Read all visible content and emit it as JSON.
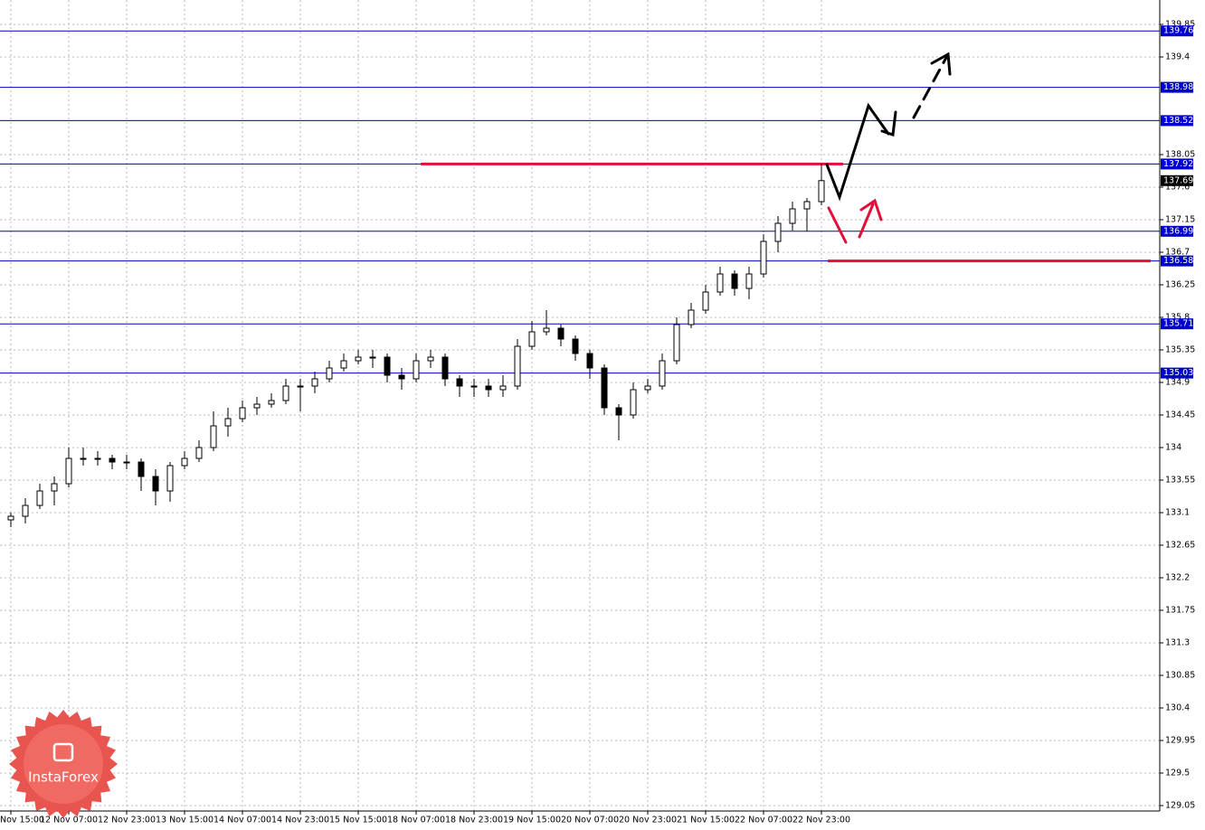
{
  "chart_data": {
    "type": "candlestick",
    "categories": [
      "Nov 15:00",
      null,
      null,
      null,
      "12 Nov 07:00",
      null,
      null,
      null,
      "12 Nov 23:00",
      null,
      null,
      null,
      "13 Nov 15:00",
      null,
      null,
      null,
      "14 Nov 07:00",
      null,
      null,
      null,
      "14 Nov 23:00",
      null,
      null,
      null,
      "15 Nov 15:00",
      null,
      null,
      null,
      "18 Nov 07:00",
      null,
      null,
      null,
      "18 Nov 23:00",
      null,
      null,
      null,
      "19 Nov 15:00",
      null,
      null,
      null,
      "20 Nov 07:00",
      null,
      null,
      null,
      "20 Nov 23:00",
      null,
      null,
      null,
      "21 Nov 15:00",
      null,
      null,
      null,
      "22 Nov 07:00",
      null,
      null,
      null,
      "22 Nov 23:00"
    ],
    "open": [
      133.0,
      133.05,
      133.2,
      133.4,
      133.5,
      133.85,
      133.85,
      133.85,
      133.8,
      133.8,
      133.6,
      133.4,
      133.75,
      133.85,
      134.0,
      134.3,
      134.4,
      134.55,
      134.6,
      134.65,
      134.85,
      134.85,
      134.95,
      135.1,
      135.2,
      135.25,
      135.25,
      135.0,
      134.95,
      135.2,
      135.25,
      134.95,
      134.85,
      134.85,
      134.8,
      134.85,
      135.4,
      135.6,
      135.65,
      135.5,
      135.3,
      135.1,
      134.55,
      134.45,
      134.8,
      134.85,
      135.2,
      135.7,
      135.9,
      136.15,
      136.4,
      136.2,
      136.4,
      136.85,
      137.1,
      137.3,
      137.4
    ],
    "high": [
      133.1,
      133.3,
      133.5,
      133.6,
      134.0,
      134.0,
      133.95,
      133.9,
      133.9,
      133.85,
      133.7,
      133.8,
      133.95,
      134.1,
      134.5,
      134.55,
      134.65,
      134.7,
      134.75,
      134.95,
      134.95,
      135.05,
      135.2,
      135.3,
      135.35,
      135.35,
      135.3,
      135.1,
      135.3,
      135.35,
      135.3,
      135.0,
      134.95,
      134.95,
      135.0,
      135.5,
      135.75,
      135.9,
      135.7,
      135.55,
      135.35,
      135.15,
      134.6,
      134.9,
      134.95,
      135.3,
      135.8,
      136.0,
      136.25,
      136.5,
      136.45,
      136.5,
      136.95,
      137.2,
      137.4,
      137.45,
      137.92
    ],
    "low": [
      132.9,
      132.95,
      133.15,
      133.2,
      133.45,
      133.75,
      133.75,
      133.7,
      133.7,
      133.4,
      133.2,
      133.25,
      133.7,
      133.8,
      133.95,
      134.15,
      134.35,
      134.45,
      134.55,
      134.6,
      134.5,
      134.75,
      134.9,
      135.05,
      135.15,
      135.1,
      134.9,
      134.8,
      134.9,
      135.1,
      134.85,
      134.7,
      134.7,
      134.7,
      134.7,
      134.8,
      135.35,
      135.55,
      135.4,
      135.2,
      134.95,
      134.45,
      134.1,
      134.4,
      134.75,
      134.8,
      135.15,
      135.65,
      135.85,
      136.1,
      136.1,
      136.05,
      136.35,
      136.7,
      137.0,
      136.99,
      137.35
    ],
    "close": [
      133.05,
      133.2,
      133.4,
      133.5,
      133.85,
      133.85,
      133.85,
      133.8,
      133.8,
      133.6,
      133.4,
      133.75,
      133.85,
      134.0,
      134.3,
      134.4,
      134.55,
      134.6,
      134.65,
      134.85,
      134.85,
      134.95,
      135.1,
      135.2,
      135.25,
      135.25,
      135.0,
      134.95,
      135.2,
      135.25,
      134.95,
      134.85,
      134.85,
      134.8,
      134.85,
      135.4,
      135.6,
      135.65,
      135.5,
      135.3,
      135.1,
      134.55,
      134.45,
      134.8,
      134.85,
      135.2,
      135.7,
      135.9,
      136.15,
      136.4,
      136.2,
      136.4,
      136.85,
      137.1,
      137.3,
      137.4,
      137.69
    ],
    "ylim": [
      128.975,
      140.1875
    ],
    "yticks": [
      139.85,
      139.4,
      138.05,
      137.6,
      137.15,
      136.7,
      136.25,
      135.8,
      135.35,
      134.9,
      134.45,
      134.0,
      133.55,
      133.1,
      132.65,
      132.2,
      131.75,
      131.3,
      130.85,
      130.4,
      129.95,
      129.5,
      129.05
    ],
    "levels": [
      139.76,
      138.98,
      138.52,
      137.92,
      136.99,
      136.58,
      135.71,
      135.03
    ],
    "level_color": "#0000cc",
    "current_price": 137.69,
    "annotation_lines": [
      {
        "value": 137.92,
        "color": "#e0103a"
      },
      {
        "value": 136.58,
        "color": "#e0103a"
      }
    ],
    "grid": true,
    "watermark": "InstaForex"
  }
}
